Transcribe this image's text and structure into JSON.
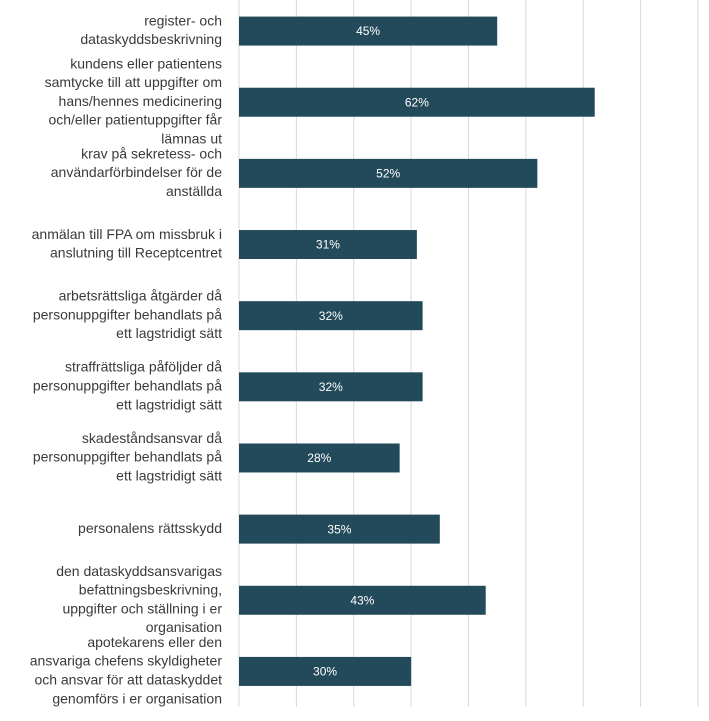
{
  "chart_data": {
    "type": "barh",
    "categories": [
      [
        "register- och",
        "dataskyddsbeskrivning"
      ],
      [
        "kundens eller patientens",
        "samtycke till att uppgifter om",
        "hans/hennes medicinering",
        "och/eller patientuppgifter får",
        "lämnas ut"
      ],
      [
        "krav på sekretess- och",
        "användarförbindelser för de",
        "anställda"
      ],
      [
        "anmälan till FPA om missbruk i",
        "anslutning till Receptcentret"
      ],
      [
        "arbetsrättsliga åtgärder då",
        "personuppgifter behandlats på",
        "ett lagstridigt sätt"
      ],
      [
        "straffrättsliga påföljder då",
        "personuppgifter behandlats på",
        "ett lagstridigt sätt"
      ],
      [
        "skadeståndsansvar då",
        "personuppgifter behandlats på",
        "ett lagstridigt sätt"
      ],
      [
        "personalens rättsskydd"
      ],
      [
        "den dataskyddsansvarigas",
        "befattningsbeskrivning,",
        "uppgifter och ställning i er",
        "organisation"
      ],
      [
        "apotekarens eller den",
        "ansvariga chefens skyldigheter",
        "och ansvar för att dataskyddet",
        "genomförs i er organisation"
      ]
    ],
    "values": [
      45,
      62,
      52,
      31,
      32,
      32,
      28,
      35,
      43,
      30
    ],
    "value_labels": [
      "45%",
      "62%",
      "52%",
      "31%",
      "32%",
      "32%",
      "28%",
      "35%",
      "43%",
      "30%"
    ],
    "color": "#234a5a",
    "xlim": [
      0,
      80
    ],
    "xticks": [
      0,
      10,
      20,
      30,
      40,
      50,
      60,
      70,
      80
    ],
    "grid": true
  }
}
